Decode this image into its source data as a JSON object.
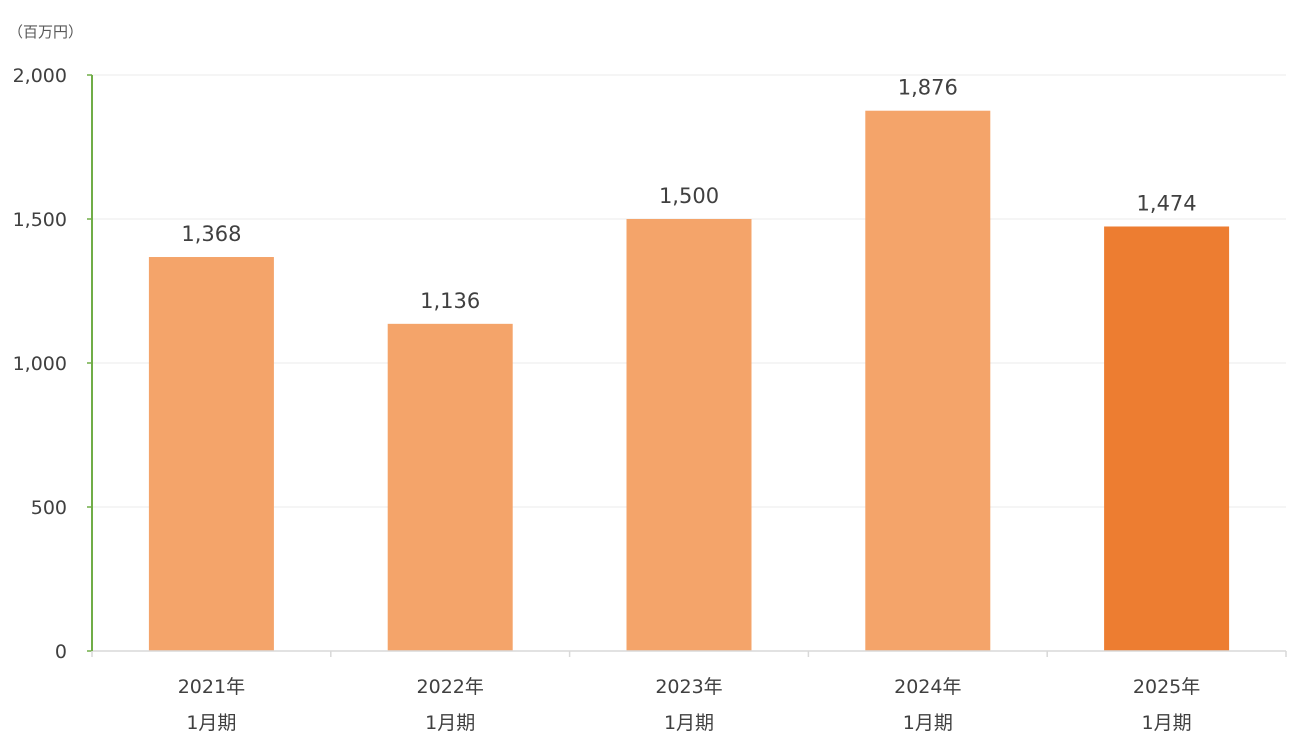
{
  "chart_data": {
    "type": "bar",
    "unit_label": "（百万円）",
    "categories": [
      [
        "2021年",
        "1月期"
      ],
      [
        "2022年",
        "1月期"
      ],
      [
        "2023年",
        "1月期"
      ],
      [
        "2024年",
        "1月期"
      ],
      [
        "2025年",
        "1月期"
      ]
    ],
    "values": [
      1368,
      1136,
      1500,
      1876,
      1474
    ],
    "value_labels": [
      "1,368",
      "1,136",
      "1,500",
      "1,876",
      "1,474"
    ],
    "ylim": [
      0,
      2000
    ],
    "yticks": [
      0,
      500,
      1000,
      1500,
      2000
    ],
    "ytick_labels": [
      "0",
      "500",
      "1,000",
      "1,500",
      "2,000"
    ],
    "grid": true,
    "colors": {
      "bar": "#F4A46A",
      "bar_highlight": "#ED7D31",
      "y_axis": "#70AD47",
      "grid": "#EBEBEB",
      "x_axis": "#D9D9D9"
    },
    "highlight_index": 4
  }
}
